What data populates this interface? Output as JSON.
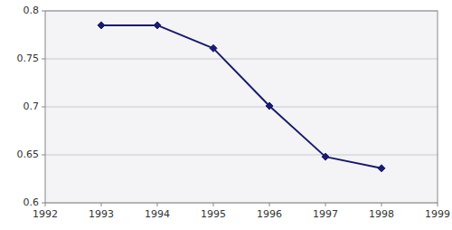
{
  "chart_data": {
    "type": "line",
    "x": [
      1993,
      1994,
      1995,
      1996,
      1997,
      1998
    ],
    "values": [
      0.785,
      0.785,
      0.761,
      0.701,
      0.648,
      0.636
    ],
    "xlim": [
      1992,
      1999
    ],
    "ylim": [
      0.6,
      0.8
    ],
    "xticks": [
      1992,
      1993,
      1994,
      1995,
      1996,
      1997,
      1998,
      1999
    ],
    "yticks": [
      0.6,
      0.65,
      0.7,
      0.75,
      0.8
    ],
    "color": "#1a1a6e",
    "marker": "diamond",
    "grid": true
  }
}
